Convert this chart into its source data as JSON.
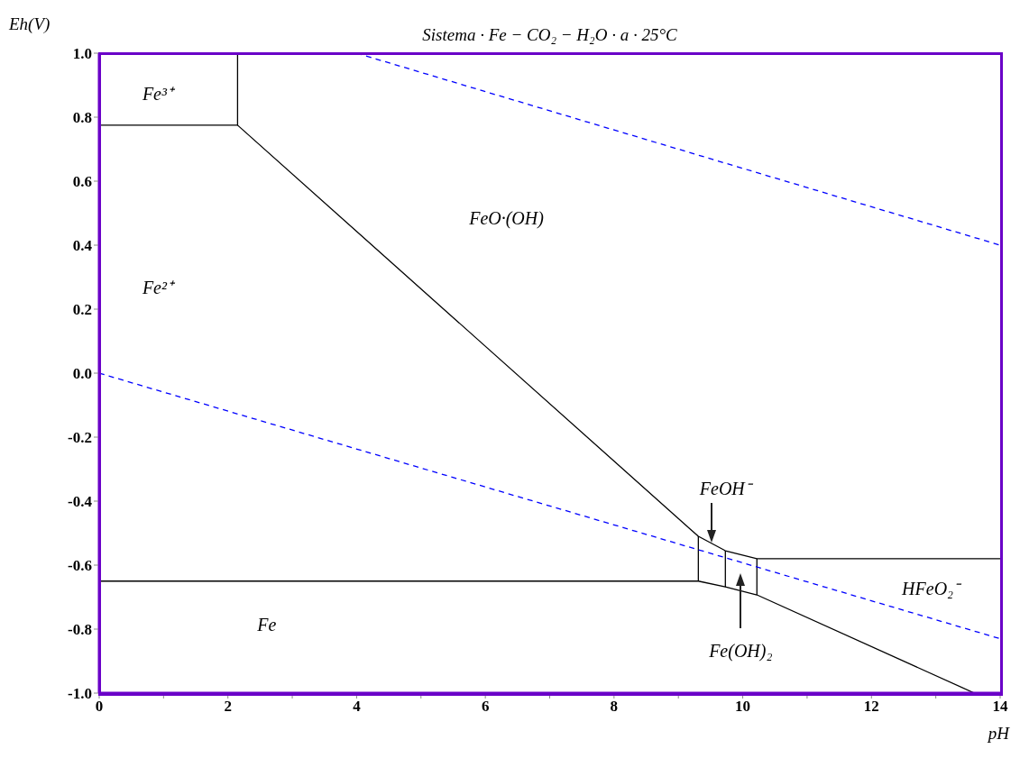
{
  "chart_data": {
    "type": "line",
    "title": "Sistema · Fe − CO₂ − H₂O · a · 25°C",
    "xlabel": "pH",
    "ylabel": "Eh(V)",
    "xlim": [
      0,
      14
    ],
    "ylim": [
      -1,
      1
    ],
    "xticks": [
      0,
      {
        "value": 1,
        "label": null
      },
      2,
      {
        "value": 3,
        "label": null
      },
      4,
      {
        "value": 5,
        "label": null
      },
      6,
      {
        "value": 7,
        "label": null
      },
      8,
      {
        "value": 9,
        "label": null
      },
      10,
      {
        "value": 11,
        "label": null
      },
      12,
      {
        "value": 13,
        "label": null
      },
      14
    ],
    "yticks": [
      {
        "value": 1,
        "label": "1.0"
      },
      0.8,
      0.6,
      0.4,
      0.2,
      {
        "value": 0,
        "label": "0.0"
      },
      -0.2,
      -0.4,
      -0.6,
      -0.8,
      {
        "value": -1,
        "label": "-1.0"
      }
    ],
    "marker": "none",
    "series": [
      {
        "color": "#000000",
        "x": [
          0,
          2.15,
          2.15
        ],
        "values": [
          0.775,
          0.775,
          1
        ]
      },
      {
        "color": "#000000",
        "x": [
          2.15,
          9.31,
          9.73,
          10.22,
          14
        ],
        "values": [
          0.775,
          -0.51,
          -0.555,
          -0.58,
          -0.58
        ]
      },
      {
        "color": "#000000",
        "x": [
          0,
          9.31,
          9.73,
          10.22,
          13.6
        ],
        "values": [
          -0.65,
          -0.65,
          -0.668,
          -0.693,
          -1
        ]
      },
      {
        "color": "#000000",
        "x": [
          9.31,
          9.31
        ],
        "values": [
          -0.51,
          -0.65
        ]
      },
      {
        "color": "#000000",
        "x": [
          9.73,
          9.73
        ],
        "values": [
          -0.555,
          -0.668
        ]
      },
      {
        "color": "#000000",
        "x": [
          10.22,
          10.22
        ],
        "values": [
          -0.58,
          -0.693
        ]
      },
      {
        "color": "#0000ff",
        "line_style": "dashed",
        "x": [
          4,
          14
        ],
        "values": [
          1,
          0.4
        ]
      },
      {
        "color": "#0000ff",
        "line_style": "dashed",
        "x": [
          0,
          14
        ],
        "values": [
          0,
          -0.83
        ]
      }
    ],
    "annotations": [
      "Fe³⁺",
      "Fe²⁺",
      "FeO·(OH)",
      "Fe",
      {
        "text": "FeOH⁻",
        "x": 9.52,
        "y": -0.53
      },
      "Fe(OH)₂",
      "HFeO₂⁻"
    ]
  }
}
